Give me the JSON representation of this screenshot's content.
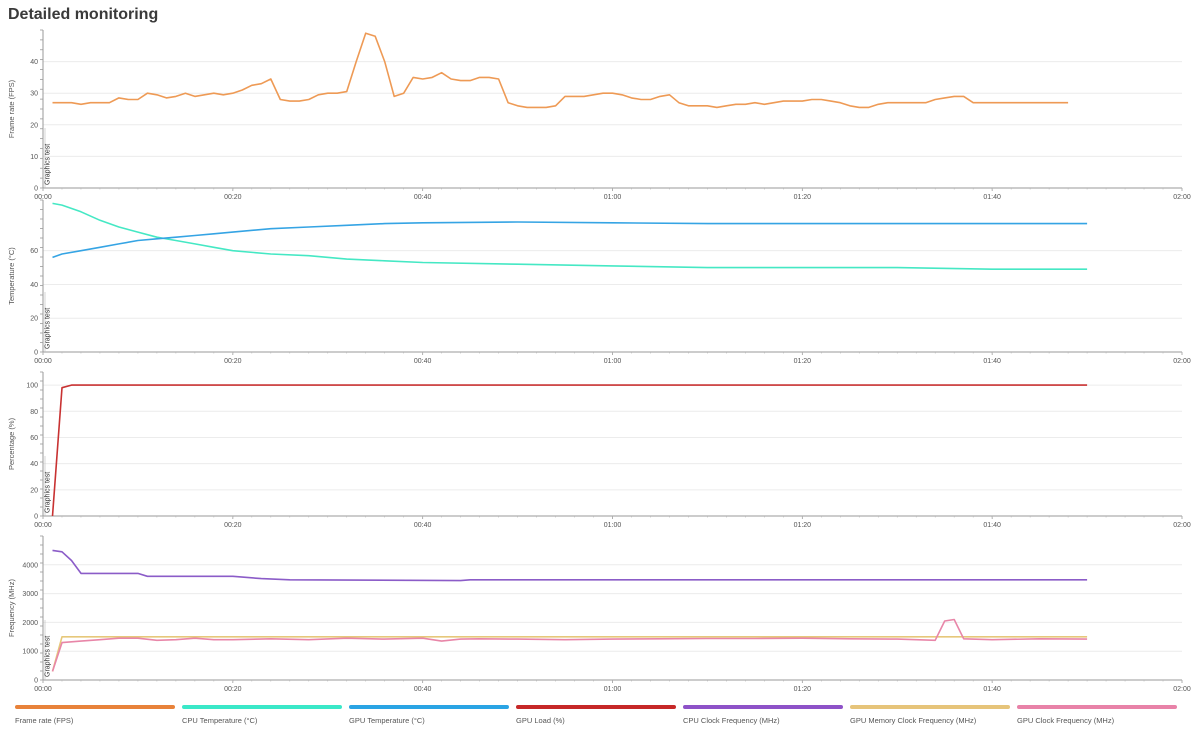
{
  "page": {
    "title": "Detailed monitoring"
  },
  "chart_data": [
    {
      "type": "line",
      "ylabel": "Frame rate (FPS)",
      "marker_label": "Graphics test",
      "xlim": [
        0,
        120
      ],
      "ylim": [
        0,
        50
      ],
      "yticks": [
        0,
        10,
        20,
        30,
        40
      ],
      "xticks": [
        "00:00",
        "00:20",
        "00:40",
        "01:00",
        "01:20",
        "01:40",
        "02:00"
      ],
      "series": [
        {
          "name": "Frame rate (FPS)",
          "color": "#ee9a55",
          "x": [
            1,
            2,
            3,
            4,
            5,
            6,
            7,
            8,
            9,
            10,
            11,
            12,
            13,
            14,
            15,
            16,
            17,
            18,
            19,
            20,
            21,
            22,
            23,
            24,
            25,
            26,
            27,
            28,
            29,
            30,
            31,
            32,
            33,
            34,
            35,
            36,
            37,
            38,
            39,
            40,
            41,
            42,
            43,
            44,
            45,
            46,
            47,
            48,
            49,
            50,
            51,
            52,
            53,
            54,
            55,
            56,
            57,
            58,
            59,
            60,
            61,
            62,
            63,
            64,
            65,
            66,
            67,
            68,
            69,
            70,
            71,
            72,
            73,
            74,
            75,
            76,
            77,
            78,
            79,
            80,
            81,
            82,
            83,
            84,
            85,
            86,
            87,
            88,
            89,
            90,
            91,
            92,
            93,
            94,
            95,
            96,
            97,
            98,
            99,
            100,
            101,
            102,
            103,
            104,
            105,
            106,
            107,
            108
          ],
          "y": [
            27,
            27,
            27,
            26.5,
            27,
            27,
            27,
            28.5,
            28,
            28,
            30,
            29.5,
            28.5,
            29,
            30,
            29,
            29.5,
            30,
            29.5,
            30,
            31,
            32.5,
            33,
            34.5,
            28,
            27.5,
            27.5,
            28,
            29.5,
            30,
            30,
            30.5,
            40,
            49,
            48,
            40,
            29,
            30,
            35,
            34.5,
            35,
            36.5,
            34.5,
            34,
            34,
            35,
            35,
            34.5,
            27,
            26,
            25.5,
            25.5,
            25.5,
            26,
            29,
            29,
            29,
            29.5,
            30,
            30,
            29.5,
            28.5,
            28,
            28,
            29,
            29.5,
            27,
            26,
            26,
            26,
            25.5,
            26,
            26.5,
            26.5,
            27,
            26.5,
            27,
            27.5,
            27.5,
            27.5,
            28,
            28,
            27.5,
            27,
            26,
            25.5,
            25.5,
            26.5,
            27,
            27,
            27,
            27,
            27,
            28,
            28.5,
            29,
            29,
            27,
            27,
            27,
            27,
            27,
            27,
            27,
            27,
            27,
            27,
            27
          ]
        }
      ]
    },
    {
      "type": "line",
      "ylabel": "Temperature (°C)",
      "marker_label": "Graphics test",
      "xlim": [
        0,
        120
      ],
      "ylim": [
        0,
        90
      ],
      "yticks": [
        0,
        20,
        40,
        60
      ],
      "xticks": [
        "00:00",
        "00:20",
        "00:40",
        "01:00",
        "01:20",
        "01:40",
        "02:00"
      ],
      "series": [
        {
          "name": "CPU Temperature (°C)",
          "color": "#45e8c4",
          "x": [
            1,
            2,
            4,
            6,
            8,
            10,
            12,
            14,
            16,
            18,
            20,
            24,
            28,
            32,
            36,
            40,
            50,
            60,
            70,
            80,
            90,
            100,
            110
          ],
          "y": [
            88,
            87,
            83,
            78,
            74,
            71,
            68,
            66,
            64,
            62,
            60,
            58,
            57,
            55,
            54,
            53,
            52,
            51,
            50,
            50,
            50,
            49,
            49
          ]
        },
        {
          "name": "GPU Temperature (°C)",
          "color": "#35a4e4",
          "x": [
            1,
            2,
            4,
            6,
            8,
            10,
            12,
            14,
            16,
            18,
            20,
            24,
            28,
            32,
            36,
            40,
            50,
            60,
            70,
            80,
            90,
            100,
            110
          ],
          "y": [
            56,
            58,
            60,
            62,
            64,
            66,
            67,
            68,
            69,
            70,
            71,
            73,
            74,
            75,
            76,
            76.5,
            77,
            76.5,
            76,
            76,
            76,
            76,
            76
          ]
        }
      ]
    },
    {
      "type": "line",
      "ylabel": "Percentage (%)",
      "marker_label": "Graphics test",
      "xlim": [
        0,
        120
      ],
      "ylim": [
        0,
        110
      ],
      "yticks": [
        0,
        20,
        40,
        60,
        80,
        100
      ],
      "xticks": [
        "00:00",
        "00:20",
        "00:40",
        "01:00",
        "01:20",
        "01:40",
        "02:00"
      ],
      "series": [
        {
          "name": "GPU Load (%)",
          "color": "#c83232",
          "x": [
            1,
            2,
            3,
            110
          ],
          "y": [
            0,
            98,
            100,
            100
          ]
        }
      ]
    },
    {
      "type": "line",
      "ylabel": "Frequency (MHz)",
      "marker_label": "Graphics test",
      "xlim": [
        0,
        120
      ],
      "ylim": [
        0,
        5000
      ],
      "yticks": [
        0,
        1000,
        2000,
        3000,
        4000
      ],
      "xticks": [
        "00:00",
        "00:20",
        "00:40",
        "01:00",
        "01:20",
        "01:40",
        "02:00"
      ],
      "series": [
        {
          "name": "CPU Clock Frequency (MHz)",
          "color": "#8b5cc8",
          "x": [
            1,
            2,
            3,
            4,
            10,
            11,
            12,
            20,
            23,
            26,
            44,
            45,
            110
          ],
          "y": [
            4500,
            4450,
            4150,
            3700,
            3700,
            3600,
            3600,
            3600,
            3520,
            3480,
            3450,
            3480,
            3480
          ]
        },
        {
          "name": "GPU Memory Clock Frequency (MHz)",
          "color": "#e6c87a",
          "x": [
            1,
            2,
            110
          ],
          "y": [
            300,
            1500,
            1500
          ]
        },
        {
          "name": "GPU Clock Frequency (MHz)",
          "color": "#e886a8",
          "x": [
            1,
            2,
            4,
            6,
            8,
            10,
            12,
            14,
            16,
            18,
            20,
            24,
            28,
            32,
            36,
            40,
            42,
            44,
            46,
            50,
            55,
            60,
            65,
            70,
            75,
            80,
            85,
            90,
            94,
            95,
            96,
            97,
            100,
            105,
            110
          ],
          "y": [
            300,
            1300,
            1350,
            1400,
            1450,
            1450,
            1380,
            1400,
            1450,
            1400,
            1400,
            1430,
            1400,
            1450,
            1420,
            1450,
            1350,
            1420,
            1430,
            1420,
            1400,
            1420,
            1430,
            1440,
            1440,
            1450,
            1430,
            1420,
            1380,
            2050,
            2100,
            1430,
            1400,
            1430,
            1420
          ]
        }
      ]
    }
  ],
  "legend": {
    "items": [
      {
        "label": "Frame rate (FPS)",
        "color": "#e8823a"
      },
      {
        "label": "CPU Temperature (°C)",
        "color": "#3ae8c8"
      },
      {
        "label": "GPU Temperature (°C)",
        "color": "#2aa4e4"
      },
      {
        "label": "GPU Load (%)",
        "color": "#c62828"
      },
      {
        "label": "CPU Clock Frequency (MHz)",
        "color": "#8e52c8"
      },
      {
        "label": "GPU Memory Clock Frequency (MHz)",
        "color": "#e6c47a"
      },
      {
        "label": "GPU Clock Frequency (MHz)",
        "color": "#e882a8"
      }
    ]
  }
}
